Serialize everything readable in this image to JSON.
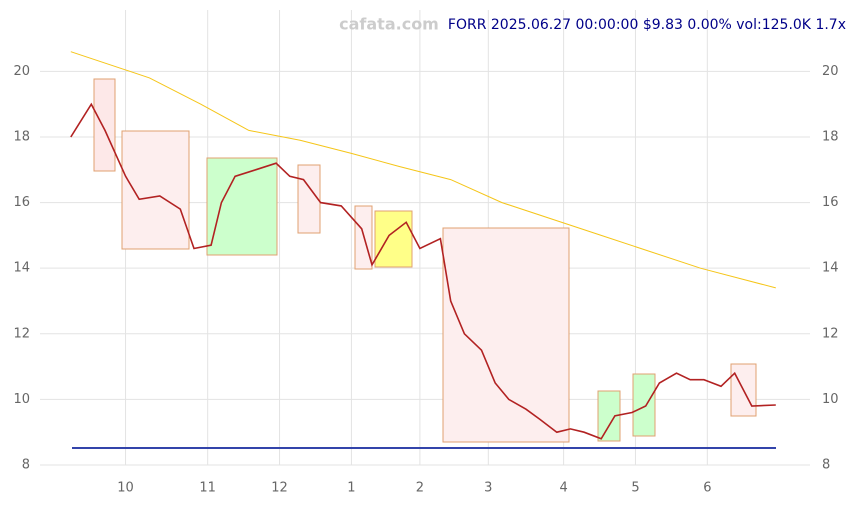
{
  "chart_data": {
    "type": "line",
    "watermark": "cafata.com",
    "title": "FORR 2025.06.27 00:00:00 $9.83 0.00% vol:125.0K 1.7x",
    "xlim": [
      -9,
      216
    ],
    "xticks": [
      {
        "value": 16,
        "label": "10"
      },
      {
        "value": 40,
        "label": "11"
      },
      {
        "value": 61,
        "label": "12"
      },
      {
        "value": 82,
        "label": "1"
      },
      {
        "value": 102,
        "label": "2"
      },
      {
        "value": 122,
        "label": "3"
      },
      {
        "value": 144,
        "label": "4"
      },
      {
        "value": 165,
        "label": "5"
      },
      {
        "value": 186,
        "label": "6"
      }
    ],
    "ylim": [
      8,
      21.2
    ],
    "yticks": [
      8,
      10,
      12,
      14,
      16,
      18,
      20
    ],
    "grid": true,
    "series": [
      {
        "color": "#b22222",
        "x": [
          0,
          6,
          10,
          16,
          20,
          26,
          32,
          36,
          41,
          44,
          48,
          54,
          60,
          64,
          68,
          73,
          79,
          85,
          88,
          93,
          98,
          102,
          108,
          111,
          115,
          120,
          124,
          128,
          133,
          137,
          142,
          146,
          150,
          155,
          159,
          164,
          168,
          172,
          177,
          181,
          185,
          190,
          194,
          199,
          206
        ],
        "values": [
          18.0,
          19.0,
          18.2,
          16.8,
          16.1,
          16.2,
          15.8,
          14.6,
          14.7,
          16.0,
          16.8,
          17.0,
          17.2,
          16.8,
          16.7,
          16.0,
          15.9,
          15.2,
          14.1,
          15.0,
          15.4,
          14.6,
          14.9,
          13.0,
          12.0,
          11.5,
          10.5,
          10.0,
          9.7,
          9.4,
          9.0,
          9.1,
          9.0,
          8.8,
          9.5,
          9.6,
          9.8,
          10.5,
          10.8,
          10.6,
          10.6,
          10.4,
          10.8,
          9.8,
          9.83
        ]
      },
      {
        "color": "#f5c518",
        "x": [
          0,
          23,
          38,
          52,
          67,
          82,
          96,
          111,
          126,
          155,
          184,
          206
        ],
        "values": [
          20.6,
          19.8,
          19.0,
          18.2,
          17.9,
          17.5,
          17.1,
          16.7,
          16.0,
          15.0,
          14.0,
          13.4
        ]
      }
    ]
  }
}
